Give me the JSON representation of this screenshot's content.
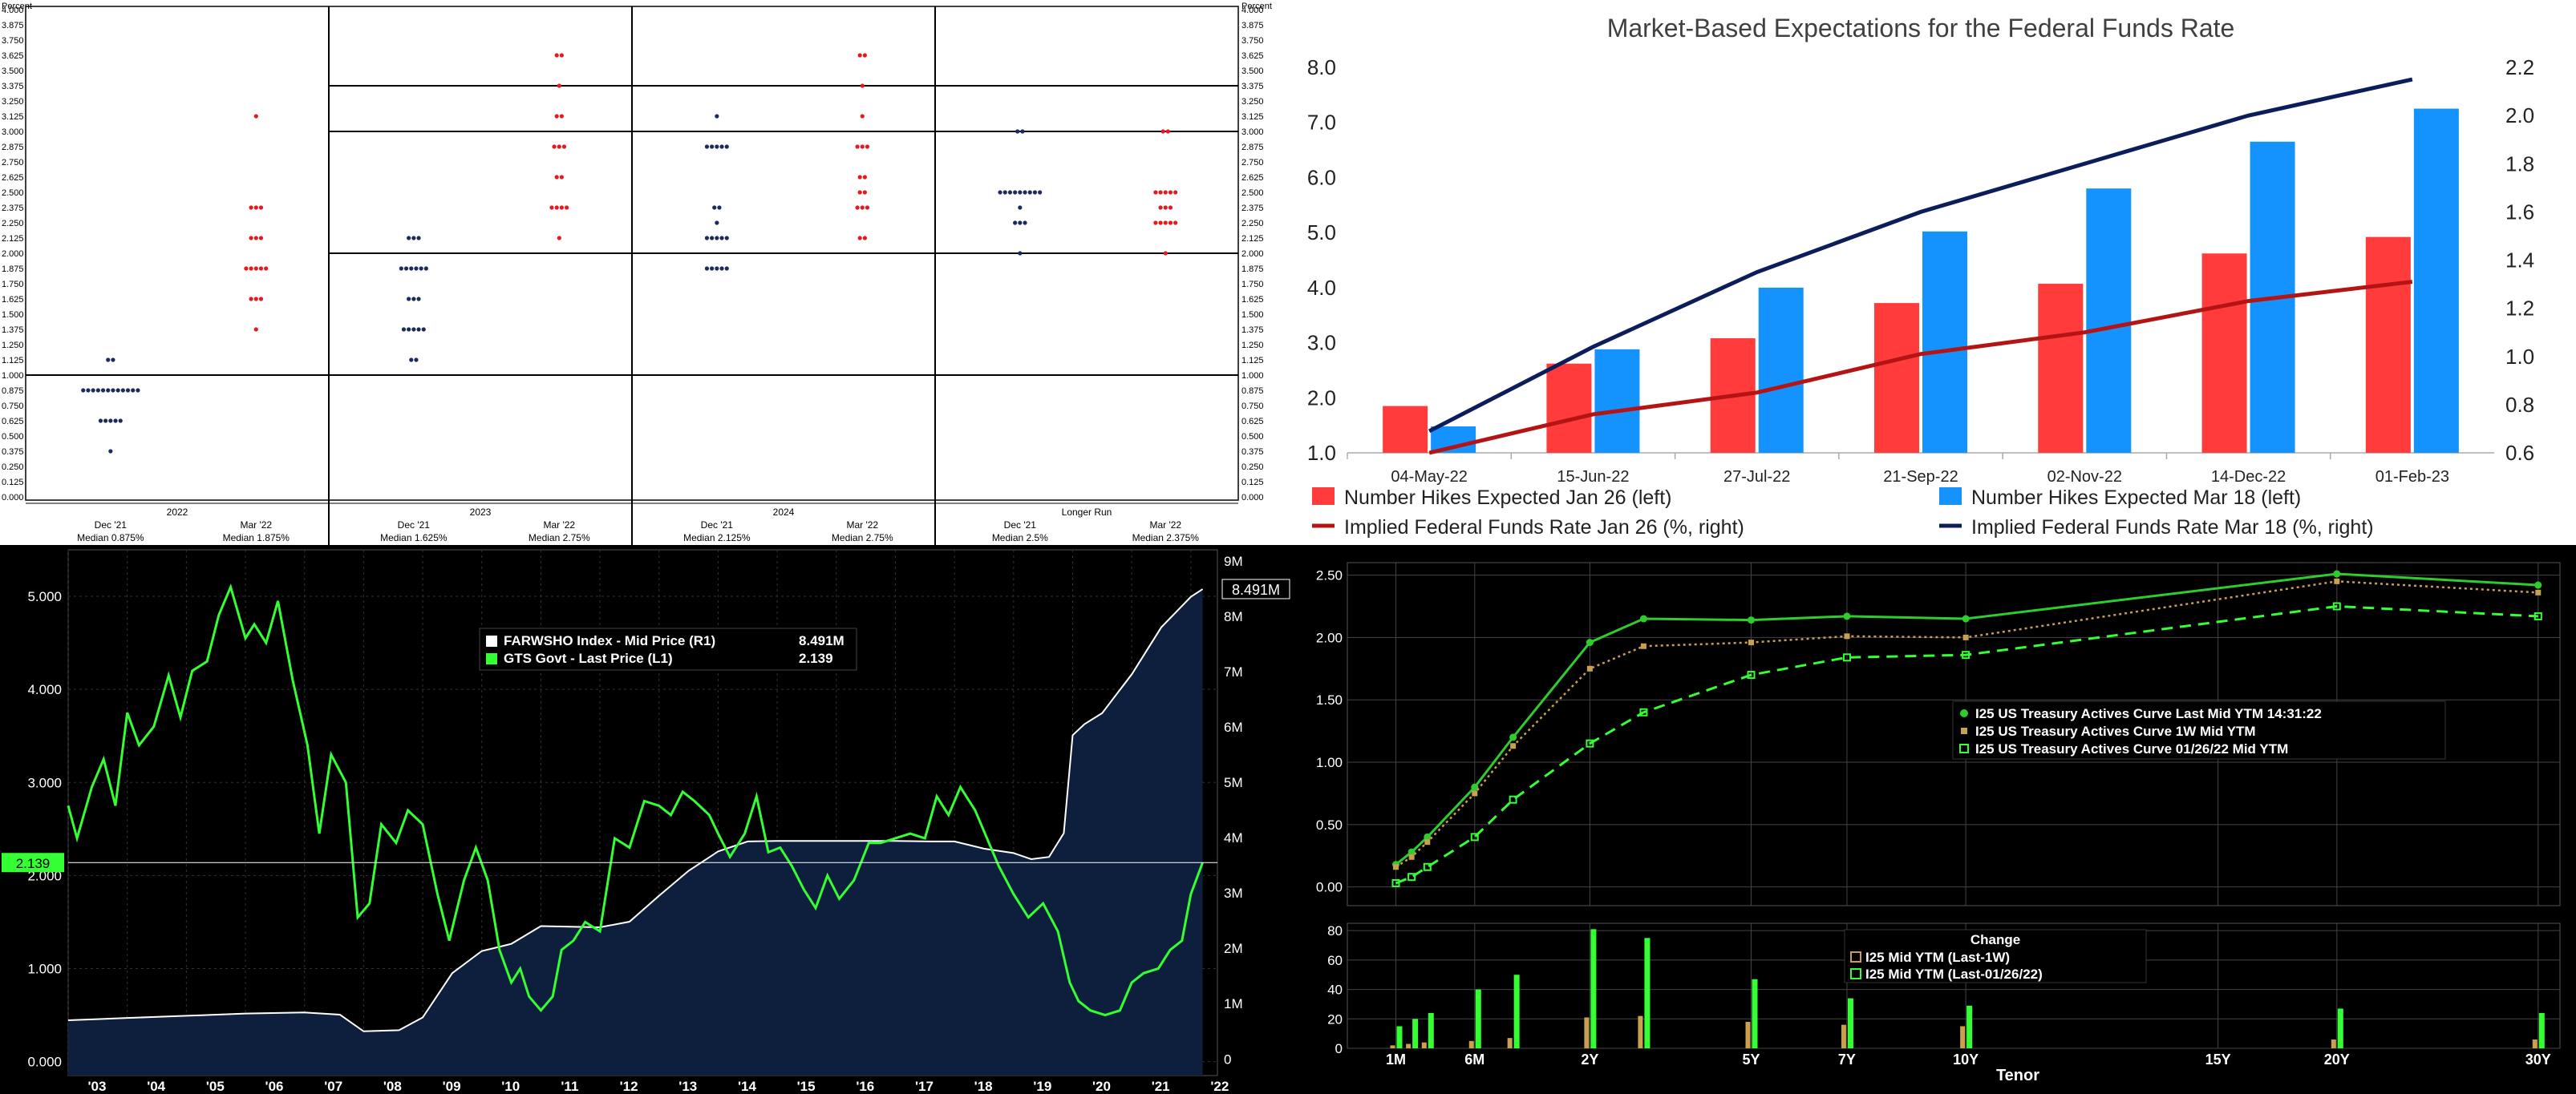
{
  "chart_data": [
    {
      "type": "scatter",
      "y_unit": "Percent",
      "ylim": [
        0,
        4
      ],
      "y_ticks": [
        "4.000",
        "3.875",
        "3.750",
        "3.625",
        "3.500",
        "3.375",
        "3.250",
        "3.125",
        "3.000",
        "2.875",
        "2.750",
        "2.625",
        "2.500",
        "2.375",
        "2.250",
        "2.125",
        "2.000",
        "1.875",
        "1.750",
        "1.625",
        "1.500",
        "1.375",
        "1.250",
        "1.125",
        "1.000",
        "0.875",
        "0.750",
        "0.625",
        "0.500",
        "0.375",
        "0.250",
        "0.125",
        "0.000"
      ],
      "series_colors": {
        "dec21": "#1c2a5e",
        "mar22": "#e8191c"
      },
      "groups": [
        {
          "name": "2022",
          "dec_label": "Dec '21",
          "mar_label": "Mar '22",
          "dec_median": "Median 0.875%",
          "mar_median": "Median 1.875%",
          "dec": [
            [
              1.125,
              2
            ],
            [
              0.875,
              12
            ],
            [
              0.625,
              5
            ],
            [
              0.375,
              1
            ]
          ],
          "mar": [
            [
              3.125,
              1
            ],
            [
              2.375,
              3
            ],
            [
              2.125,
              3
            ],
            [
              1.875,
              5
            ],
            [
              1.625,
              3
            ],
            [
              1.375,
              1
            ]
          ]
        },
        {
          "name": "2023",
          "dec_label": "Dec '21",
          "mar_label": "Mar '22",
          "dec_median": "Median 1.625%",
          "mar_median": "Median 2.75%",
          "dec": [
            [
              2.125,
              3
            ],
            [
              1.875,
              6
            ],
            [
              1.625,
              3
            ],
            [
              1.375,
              5
            ],
            [
              1.125,
              2
            ]
          ],
          "mar": [
            [
              3.625,
              2
            ],
            [
              3.375,
              1
            ],
            [
              3.125,
              2
            ],
            [
              2.875,
              3
            ],
            [
              2.625,
              2
            ],
            [
              2.375,
              4
            ],
            [
              2.125,
              1
            ]
          ]
        },
        {
          "name": "2024",
          "dec_label": "Dec '21",
          "mar_label": "Mar '22",
          "dec_median": "Median 2.125%",
          "mar_median": "Median 2.75%",
          "dec": [
            [
              3.125,
              1
            ],
            [
              2.875,
              5
            ],
            [
              2.375,
              2
            ],
            [
              2.25,
              1
            ],
            [
              2.125,
              5
            ],
            [
              1.875,
              5
            ]
          ],
          "mar": [
            [
              3.625,
              2
            ],
            [
              3.375,
              1
            ],
            [
              3.125,
              1
            ],
            [
              2.875,
              3
            ],
            [
              2.625,
              2
            ],
            [
              2.5,
              2
            ],
            [
              2.375,
              3
            ],
            [
              2.125,
              2
            ]
          ]
        },
        {
          "name": "Longer Run",
          "dec_label": "Dec '21",
          "mar_label": "Mar '22",
          "dec_median": "Median 2.5%",
          "mar_median": "Median 2.375%",
          "dec": [
            [
              3.0,
              2
            ],
            [
              2.5,
              9
            ],
            [
              2.375,
              1
            ],
            [
              2.25,
              3
            ],
            [
              2.0,
              1
            ]
          ],
          "mar": [
            [
              3.0,
              2
            ],
            [
              2.5,
              5
            ],
            [
              2.375,
              3
            ],
            [
              2.25,
              5
            ],
            [
              2.0,
              1
            ]
          ]
        }
      ]
    },
    {
      "type": "bar",
      "title": "Market-Based Expectations for the Federal Funds Rate",
      "categories": [
        "04-May-22",
        "15-Jun-22",
        "27-Jul-22",
        "21-Sep-22",
        "02-Nov-22",
        "14-Dec-22",
        "01-Feb-23"
      ],
      "ylim_left": [
        1.0,
        8.0
      ],
      "yticks_left": [
        "1.0",
        "2.0",
        "3.0",
        "4.0",
        "5.0",
        "6.0",
        "7.0",
        "8.0"
      ],
      "ylim_right": [
        0.6,
        2.2
      ],
      "yticks_right": [
        "0.6",
        "0.8",
        "1.0",
        "1.2",
        "1.4",
        "1.6",
        "1.8",
        "2.0",
        "2.2"
      ],
      "series": [
        {
          "name": "Number Hikes Expected Jan 26 (left)",
          "kind": "bar",
          "color": "#ff3b3b",
          "values": [
            1.85,
            2.62,
            3.08,
            3.72,
            4.07,
            4.62,
            4.92
          ]
        },
        {
          "name": "Number Hikes Expected Mar 18 (left)",
          "kind": "bar",
          "color": "#1493ff",
          "values": [
            1.48,
            2.88,
            4.0,
            5.02,
            5.8,
            6.65,
            7.25
          ]
        },
        {
          "name": "Implied Federal Funds Rate Jan 26 (%, right)",
          "kind": "line",
          "color": "#b41414",
          "values": [
            0.57,
            0.76,
            0.85,
            1.01,
            1.1,
            1.23,
            1.31
          ]
        },
        {
          "name": "Implied Federal Funds Rate Mar 18 (%, right)",
          "kind": "line",
          "color": "#0b1e5b",
          "values": [
            0.69,
            1.04,
            1.35,
            1.6,
            1.8,
            2.0,
            2.15
          ]
        }
      ]
    },
    {
      "type": "area",
      "x_ticks": [
        "'03",
        "'04",
        "'05",
        "'06",
        "'07",
        "'08",
        "'09",
        "'10",
        "'11",
        "'12",
        "'13",
        "'14",
        "'15",
        "'16",
        "'17",
        "'18",
        "'19",
        "'20",
        "'21",
        "'22"
      ],
      "left_ticks": [
        "0.000",
        "1.000",
        "2.000",
        "3.000",
        "4.000",
        "5.000"
      ],
      "right_ticks": [
        "0",
        "1M",
        "2M",
        "3M",
        "4M",
        "5M",
        "6M",
        "7M",
        "8M",
        "9M"
      ],
      "ylim_left": [
        -0.15,
        5.5
      ],
      "ylim_right": [
        -0.3,
        9.2
      ],
      "legend": [
        {
          "name": "FARWSHO Index - Mid Price (R1)",
          "value": "8.491M",
          "color": "#ffffff"
        },
        {
          "name": "GTS Govt - Last Price (L1)",
          "value": "2.139",
          "color": "#33ff33"
        }
      ],
      "last_right": "8.491M",
      "last_left": "2.139",
      "series": [
        {
          "name": "FARWSHO Index - Mid Price (R1)",
          "axis": "right",
          "unit": "millions",
          "color": "#ffffff",
          "x": [
            2003.0,
            2004.0,
            2005.0,
            2006.0,
            2007.0,
            2007.6,
            2008.0,
            2008.6,
            2009.0,
            2009.5,
            2010.0,
            2010.5,
            2011.0,
            2011.5,
            2012.0,
            2012.5,
            2013.0,
            2013.5,
            2014.0,
            2014.5,
            2015.0,
            2016.0,
            2017.0,
            2017.6,
            2018.0,
            2018.5,
            2019.0,
            2019.3,
            2019.6,
            2019.85,
            2020.0,
            2020.2,
            2020.5,
            2021.0,
            2021.5,
            2022.0,
            2022.2
          ],
          "y": [
            0.7,
            0.74,
            0.78,
            0.82,
            0.84,
            0.8,
            0.5,
            0.52,
            0.75,
            1.55,
            1.95,
            2.08,
            2.4,
            2.39,
            2.38,
            2.48,
            2.95,
            3.4,
            3.75,
            3.93,
            3.94,
            3.94,
            3.94,
            3.93,
            3.93,
            3.8,
            3.72,
            3.61,
            3.65,
            4.08,
            5.85,
            6.05,
            6.25,
            6.95,
            7.8,
            8.35,
            8.49
          ]
        },
        {
          "name": "GTS Govt - Last Price (L1)",
          "axis": "left",
          "unit": "percent",
          "color": "#33ff33",
          "x": [
            2003.0,
            2003.15,
            2003.4,
            2003.6,
            2003.8,
            2004.0,
            2004.2,
            2004.45,
            2004.7,
            2004.9,
            2005.1,
            2005.35,
            2005.55,
            2005.75,
            2006.0,
            2006.15,
            2006.35,
            2006.55,
            2006.8,
            2007.05,
            2007.25,
            2007.45,
            2007.7,
            2007.9,
            2008.1,
            2008.3,
            2008.55,
            2008.75,
            2009.0,
            2009.25,
            2009.45,
            2009.7,
            2009.9,
            2010.1,
            2010.3,
            2010.5,
            2010.65,
            2010.8,
            2011.0,
            2011.2,
            2011.35,
            2011.55,
            2011.75,
            2012.0,
            2012.25,
            2012.5,
            2012.75,
            2013.0,
            2013.2,
            2013.4,
            2013.6,
            2013.85,
            2014.0,
            2014.2,
            2014.45,
            2014.65,
            2014.85,
            2015.05,
            2015.25,
            2015.45,
            2015.65,
            2015.85,
            2016.05,
            2016.3,
            2016.55,
            2016.75,
            2017.0,
            2017.25,
            2017.5,
            2017.7,
            2017.9,
            2018.1,
            2018.35,
            2018.55,
            2018.75,
            2019.0,
            2019.25,
            2019.5,
            2019.75,
            2019.95,
            2020.1,
            2020.3,
            2020.55,
            2020.8,
            2021.0,
            2021.2,
            2021.45,
            2021.65,
            2021.85,
            2022.0,
            2022.2
          ],
          "y": [
            2.75,
            2.4,
            2.95,
            3.25,
            2.75,
            3.75,
            3.4,
            3.6,
            4.15,
            3.7,
            4.2,
            4.3,
            4.8,
            5.1,
            4.55,
            4.7,
            4.5,
            4.95,
            4.1,
            3.4,
            2.45,
            3.3,
            3.0,
            1.55,
            1.7,
            2.55,
            2.35,
            2.7,
            2.55,
            1.8,
            1.3,
            1.95,
            2.3,
            1.95,
            1.2,
            0.85,
            1.0,
            0.7,
            0.55,
            0.7,
            1.2,
            1.3,
            1.5,
            1.4,
            2.4,
            2.3,
            2.8,
            2.75,
            2.65,
            2.9,
            2.8,
            2.65,
            2.45,
            2.2,
            2.45,
            2.85,
            2.25,
            2.3,
            2.1,
            1.85,
            1.65,
            2.0,
            1.75,
            1.95,
            2.35,
            2.35,
            2.4,
            2.45,
            2.4,
            2.85,
            2.65,
            2.95,
            2.7,
            2.4,
            2.1,
            1.8,
            1.55,
            1.7,
            1.4,
            0.85,
            0.65,
            0.55,
            0.5,
            0.55,
            0.85,
            0.95,
            1.0,
            1.2,
            1.3,
            1.8,
            2.14
          ]
        }
      ]
    },
    {
      "type": "line",
      "x_ticks": [
        "1M",
        "6M",
        "2Y",
        "5Y",
        "7Y",
        "10Y",
        "15Y",
        "20Y",
        "30Y"
      ],
      "xlabel": "Tenor",
      "y_ticks": [
        "0.00",
        "0.50",
        "1.00",
        "1.50",
        "2.00",
        "2.50"
      ],
      "sub_y_ticks": [
        "0",
        "20",
        "40",
        "60",
        "80"
      ],
      "ylim": [
        -0.15,
        2.6
      ],
      "sub_ylim": [
        0,
        85
      ],
      "legend": [
        {
          "name": "I25 US Treasury Actives Curve Last Mid YTM 14:31:22",
          "color": "#2ecc2e"
        },
        {
          "name": "I25 US Treasury Actives Curve 1W Mid YTM",
          "color": "#c8a050"
        },
        {
          "name": "I25 US Treasury Actives Curve 01/26/22 Mid YTM",
          "color": "#33ff33"
        }
      ],
      "sub_legend_title": "Change",
      "sub_legend": [
        {
          "name": "I25 Mid YTM (Last-1W)",
          "color": "#c8a050"
        },
        {
          "name": "I25 Mid YTM (Last-01/26/22)",
          "color": "#33ff33"
        }
      ],
      "tenor_months": [
        1,
        2,
        3,
        6,
        12,
        24,
        36,
        60,
        84,
        120,
        240,
        360
      ],
      "series": [
        {
          "name": "I25 US Treasury Actives Curve Last Mid YTM 14:31:22",
          "values": [
            0.18,
            0.28,
            0.4,
            0.8,
            1.2,
            1.96,
            2.15,
            2.14,
            2.17,
            2.15,
            2.51,
            2.42
          ]
        },
        {
          "name": "I25 US Treasury Actives Curve 1W Mid YTM",
          "values": [
            0.16,
            0.24,
            0.36,
            0.75,
            1.13,
            1.75,
            1.93,
            1.96,
            2.01,
            2.0,
            2.45,
            2.36
          ]
        },
        {
          "name": "I25 US Treasury Actives Curve 01/26/22 Mid YTM",
          "values": [
            0.03,
            0.08,
            0.16,
            0.4,
            0.7,
            1.15,
            1.4,
            1.7,
            1.84,
            1.86,
            2.25,
            2.17
          ]
        },
        {
          "name": "I25 Mid YTM (Last-1W)",
          "values": [
            2,
            3,
            4,
            5,
            7,
            21,
            22,
            18,
            16,
            15,
            6,
            6
          ]
        },
        {
          "name": "I25 Mid YTM (Last-01/26/22)",
          "values": [
            15,
            20,
            24,
            40,
            50,
            81,
            75,
            47,
            34,
            29,
            27,
            24
          ]
        }
      ]
    }
  ]
}
